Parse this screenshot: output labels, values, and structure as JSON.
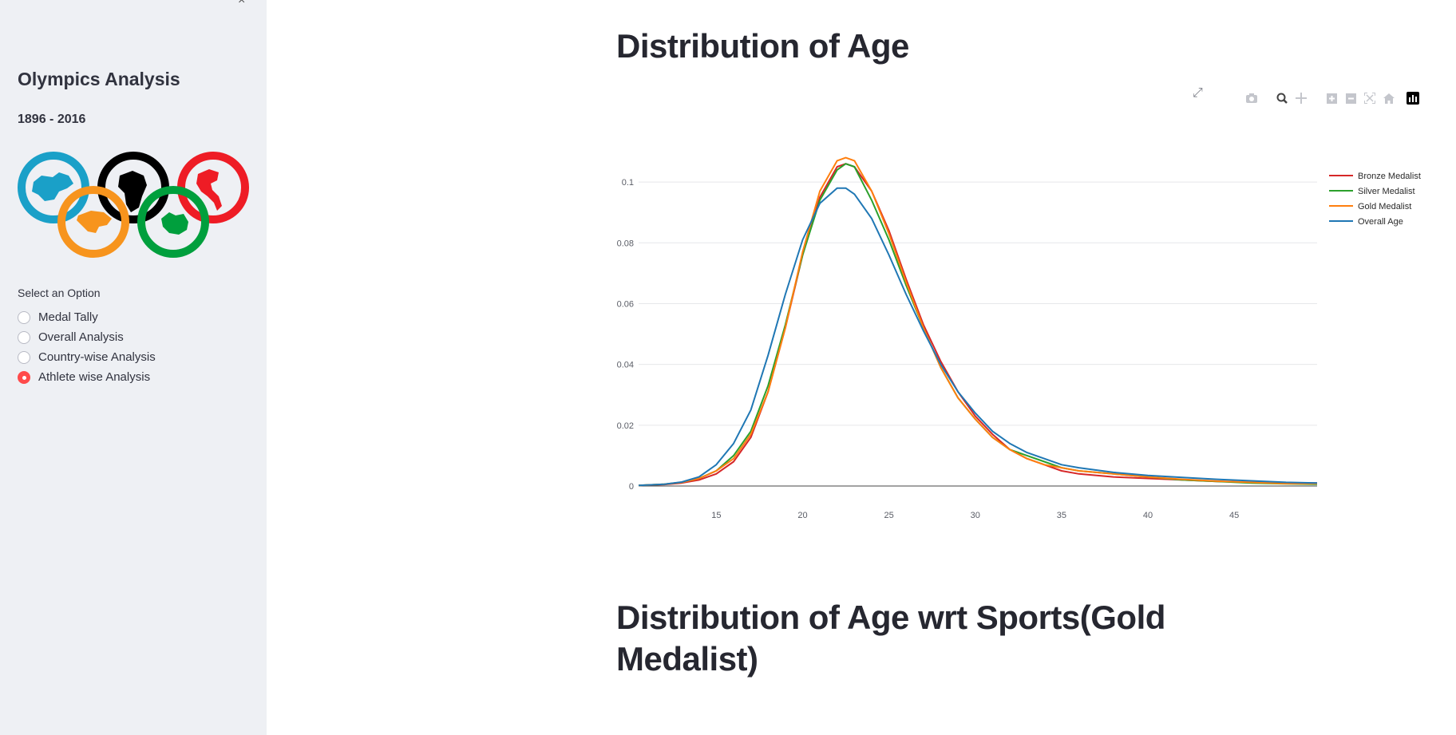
{
  "sidebar": {
    "title": "Olympics Analysis",
    "subtitle": "1896 - 2016",
    "close_icon": "close-icon",
    "radio_label": "Select an Option",
    "options": [
      {
        "label": "Medal Tally",
        "selected": false
      },
      {
        "label": "Overall Analysis",
        "selected": false
      },
      {
        "label": "Country-wise Analysis",
        "selected": false
      },
      {
        "label": "Athlete wise Analysis",
        "selected": true
      }
    ],
    "accent": "#ff4b4b"
  },
  "main": {
    "heading": "Distribution of Age",
    "heading2": "Distribution of Age wrt Sports(Gold Medalist)"
  },
  "modebar": [
    "camera-icon",
    "zoom-icon",
    "pan-icon",
    "zoom-in-icon",
    "zoom-out-icon",
    "autoscale-icon",
    "reset-axes-icon",
    "plotly-logo-icon"
  ],
  "chart_data": {
    "type": "line",
    "title": "",
    "xlabel": "",
    "ylabel": "",
    "xlim": [
      10.5,
      49.8
    ],
    "ylim": [
      0,
      0.11
    ],
    "x_ticks": [
      15,
      20,
      25,
      30,
      35,
      40,
      45
    ],
    "y_ticks": [
      0,
      0.02,
      0.04,
      0.06,
      0.08,
      0.1
    ],
    "y_tick_labels": [
      "0",
      "0.02",
      "0.04",
      "0.06",
      "0.08",
      "0.1"
    ],
    "legend_position": "top-right",
    "grid": true,
    "x": [
      10.5,
      12,
      13,
      14,
      15,
      16,
      17,
      18,
      19,
      20,
      21,
      22,
      22.5,
      23,
      24,
      25,
      26,
      27,
      28,
      29,
      30,
      31,
      32,
      33,
      34,
      35,
      36,
      38,
      40,
      42,
      44,
      46,
      48,
      49.8
    ],
    "series": [
      {
        "name": "Bronze Medalist",
        "color": "#d62728",
        "values": [
          0.0002,
          0.0005,
          0.001,
          0.002,
          0.004,
          0.008,
          0.016,
          0.031,
          0.052,
          0.076,
          0.095,
          0.105,
          0.106,
          0.105,
          0.097,
          0.084,
          0.068,
          0.053,
          0.041,
          0.031,
          0.023,
          0.017,
          0.012,
          0.009,
          0.007,
          0.005,
          0.004,
          0.003,
          0.0025,
          0.002,
          0.0015,
          0.0012,
          0.001,
          0.001
        ]
      },
      {
        "name": "Silver Medalist",
        "color": "#2ca02c",
        "values": [
          0.0002,
          0.0006,
          0.0012,
          0.0025,
          0.005,
          0.01,
          0.018,
          0.033,
          0.053,
          0.076,
          0.094,
          0.104,
          0.106,
          0.105,
          0.094,
          0.081,
          0.066,
          0.052,
          0.039,
          0.029,
          0.022,
          0.016,
          0.012,
          0.01,
          0.008,
          0.006,
          0.005,
          0.004,
          0.003,
          0.002,
          0.0015,
          0.001,
          0.0007,
          0.0006
        ]
      },
      {
        "name": "Gold Medalist",
        "color": "#ff7f0e",
        "values": [
          0.0002,
          0.0006,
          0.0012,
          0.0025,
          0.005,
          0.009,
          0.017,
          0.031,
          0.052,
          0.077,
          0.097,
          0.107,
          0.108,
          0.107,
          0.097,
          0.083,
          0.067,
          0.052,
          0.039,
          0.029,
          0.022,
          0.016,
          0.012,
          0.009,
          0.007,
          0.006,
          0.005,
          0.004,
          0.003,
          0.0022,
          0.0016,
          0.0012,
          0.0008,
          0.0008
        ]
      },
      {
        "name": "Overall Age",
        "color": "#1f77b4",
        "values": [
          0.0002,
          0.0006,
          0.0013,
          0.003,
          0.007,
          0.014,
          0.025,
          0.043,
          0.063,
          0.081,
          0.093,
          0.098,
          0.098,
          0.096,
          0.088,
          0.076,
          0.063,
          0.051,
          0.04,
          0.031,
          0.024,
          0.018,
          0.014,
          0.011,
          0.009,
          0.007,
          0.006,
          0.0045,
          0.0035,
          0.0028,
          0.0022,
          0.0017,
          0.0012,
          0.001
        ]
      }
    ]
  }
}
